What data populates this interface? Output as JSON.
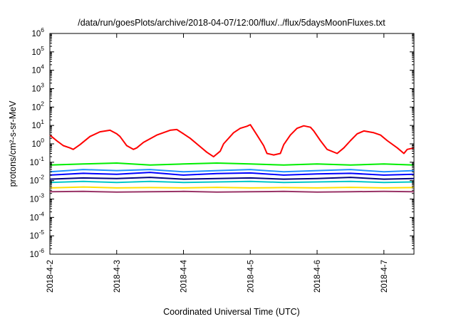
{
  "chart_data": {
    "type": "line",
    "title": "/data/run/goesPlots/archive/2018-04-07/12:00/flux/../flux/5daysMoonFluxes.txt",
    "xlabel": "Coordinated Universal Time (UTC)",
    "ylabel": "protons/cm²-s-sr-MeV",
    "y_scale": "log",
    "ylim_exp": [
      -6,
      6
    ],
    "y_tick_base": "10",
    "y_tick_exponents": [
      "6",
      "5",
      "4",
      "3",
      "2",
      "1",
      "0",
      "-1",
      "-2",
      "-3",
      "-4",
      "-5",
      "-6"
    ],
    "x_ticks": [
      "2018-4-2",
      "2018-4-3",
      "2018-4-4",
      "2018-4-5",
      "2018-4-6",
      "2018-4-7"
    ],
    "x_tick_days": [
      0,
      1,
      2,
      3,
      4,
      5
    ],
    "xlim_days": [
      0,
      5.45
    ],
    "grid": false,
    "legend": "none",
    "series": [
      {
        "color": "#ff0000",
        "x": [
          0,
          0.1,
          0.2,
          0.3,
          0.35,
          0.45,
          0.6,
          0.75,
          0.9,
          1.0,
          1.05,
          1.15,
          1.25,
          1.3,
          1.4,
          1.6,
          1.8,
          1.9,
          2.0,
          2.1,
          2.25,
          2.35,
          2.45,
          2.55,
          2.6,
          2.75,
          2.85,
          2.95,
          3.0,
          3.1,
          3.2,
          3.25,
          3.35,
          3.45,
          3.5,
          3.6,
          3.7,
          3.8,
          3.9,
          3.95,
          4.05,
          4.15,
          4.3,
          4.4,
          4.5,
          4.6,
          4.7,
          4.85,
          4.95,
          5.05,
          5.2,
          5.3,
          5.35,
          5.45
        ],
        "y": [
          3,
          1.5,
          0.8,
          0.6,
          0.5,
          0.9,
          2.5,
          4.5,
          5.5,
          3.5,
          2.5,
          0.8,
          0.5,
          0.6,
          1.2,
          3,
          5.5,
          6,
          3.5,
          2,
          0.7,
          0.35,
          0.2,
          0.4,
          1,
          4,
          7,
          9,
          11,
          3,
          0.8,
          0.3,
          0.25,
          0.3,
          0.9,
          3,
          7,
          9.5,
          8,
          5,
          1.5,
          0.5,
          0.3,
          0.6,
          1.5,
          3.5,
          5,
          4,
          3,
          1.5,
          0.6,
          0.3,
          0.5,
          0.6
        ]
      },
      {
        "color": "#00ee00",
        "x": [
          0,
          0.5,
          1.0,
          1.5,
          2.0,
          2.5,
          3.0,
          3.5,
          4.0,
          4.5,
          5.0,
          5.45
        ],
        "y": [
          0.07,
          0.08,
          0.09,
          0.07,
          0.08,
          0.09,
          0.08,
          0.07,
          0.08,
          0.07,
          0.08,
          0.07
        ]
      },
      {
        "color": "#1e90ff",
        "x": [
          0,
          0.5,
          1.0,
          1.5,
          2.0,
          2.5,
          3.0,
          3.5,
          4.0,
          4.5,
          5.0,
          5.45
        ],
        "y": [
          0.03,
          0.04,
          0.035,
          0.04,
          0.03,
          0.035,
          0.04,
          0.03,
          0.035,
          0.04,
          0.03,
          0.035
        ]
      },
      {
        "color": "#0000ff",
        "x": [
          0,
          0.5,
          1.0,
          1.5,
          2.0,
          2.5,
          3.0,
          3.5,
          4.0,
          4.5,
          5.0,
          5.45
        ],
        "y": [
          0.02,
          0.025,
          0.022,
          0.028,
          0.02,
          0.024,
          0.026,
          0.02,
          0.023,
          0.025,
          0.02,
          0.022
        ]
      },
      {
        "color": "#000080",
        "x": [
          0,
          0.5,
          1.0,
          1.5,
          2.0,
          2.5,
          3.0,
          3.5,
          4.0,
          4.5,
          5.0,
          5.45
        ],
        "y": [
          0.012,
          0.014,
          0.013,
          0.015,
          0.012,
          0.013,
          0.014,
          0.012,
          0.013,
          0.015,
          0.012,
          0.013
        ]
      },
      {
        "color": "#00c8c8",
        "x": [
          0,
          0.5,
          1.0,
          1.5,
          2.0,
          2.5,
          3.0,
          3.5,
          4.0,
          4.5,
          5.0,
          5.45
        ],
        "y": [
          0.008,
          0.009,
          0.008,
          0.009,
          0.008,
          0.0085,
          0.009,
          0.008,
          0.0085,
          0.009,
          0.008,
          0.0085
        ]
      },
      {
        "color": "#ffe000",
        "x": [
          0,
          0.5,
          1.0,
          1.5,
          2.0,
          2.5,
          3.0,
          3.5,
          4.0,
          4.5,
          5.0,
          5.45
        ],
        "y": [
          0.004,
          0.0045,
          0.004,
          0.0042,
          0.004,
          0.0043,
          0.004,
          0.0042,
          0.004,
          0.0043,
          0.004,
          0.0042
        ]
      },
      {
        "color": "#993366",
        "x": [
          0,
          0.5,
          1.0,
          1.5,
          2.0,
          2.5,
          3.0,
          3.5,
          4.0,
          4.5,
          5.0,
          5.45
        ],
        "y": [
          0.0025,
          0.0026,
          0.0024,
          0.0025,
          0.0026,
          0.0024,
          0.0025,
          0.0026,
          0.0024,
          0.0025,
          0.0026,
          0.0025
        ]
      }
    ]
  }
}
